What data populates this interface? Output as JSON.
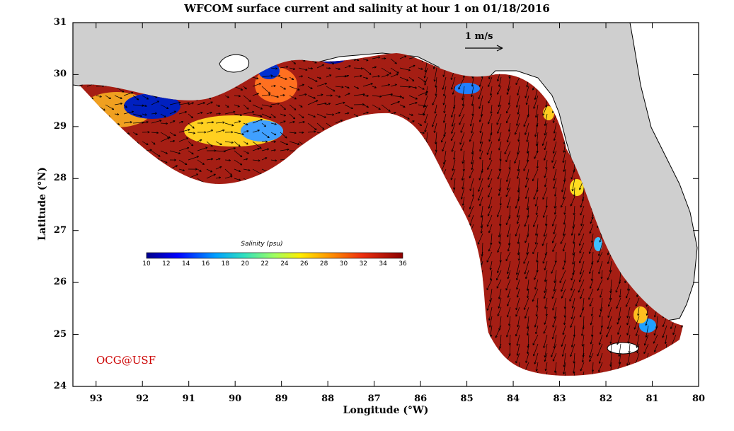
{
  "title": "WFCOM surface current and salinity at hour 1 on 01/18/2016",
  "axes": {
    "xlabel": "Longitude (°W)",
    "ylabel": "Latitude (°N)",
    "x_range": [
      93.5,
      80
    ],
    "y_range": [
      24,
      31
    ],
    "x_ticks": [
      "93",
      "92",
      "91",
      "90",
      "89",
      "88",
      "87",
      "86",
      "85",
      "84",
      "83",
      "82",
      "81",
      "80"
    ],
    "y_ticks": [
      "31",
      "30",
      "29",
      "28",
      "27",
      "26",
      "25",
      "24"
    ]
  },
  "scale_vector": {
    "label": "1 m/s"
  },
  "colorbar": {
    "title": "Salinity (psu)",
    "ticks": [
      "10",
      "12",
      "14",
      "16",
      "18",
      "20",
      "22",
      "24",
      "26",
      "28",
      "30",
      "32",
      "34",
      "36"
    ],
    "range": [
      10,
      36
    ]
  },
  "credit": "OCG@USF",
  "colors": {
    "land": "#cfcfcf",
    "ocean_high": "#a51e14",
    "credit": "#cc0000"
  }
}
